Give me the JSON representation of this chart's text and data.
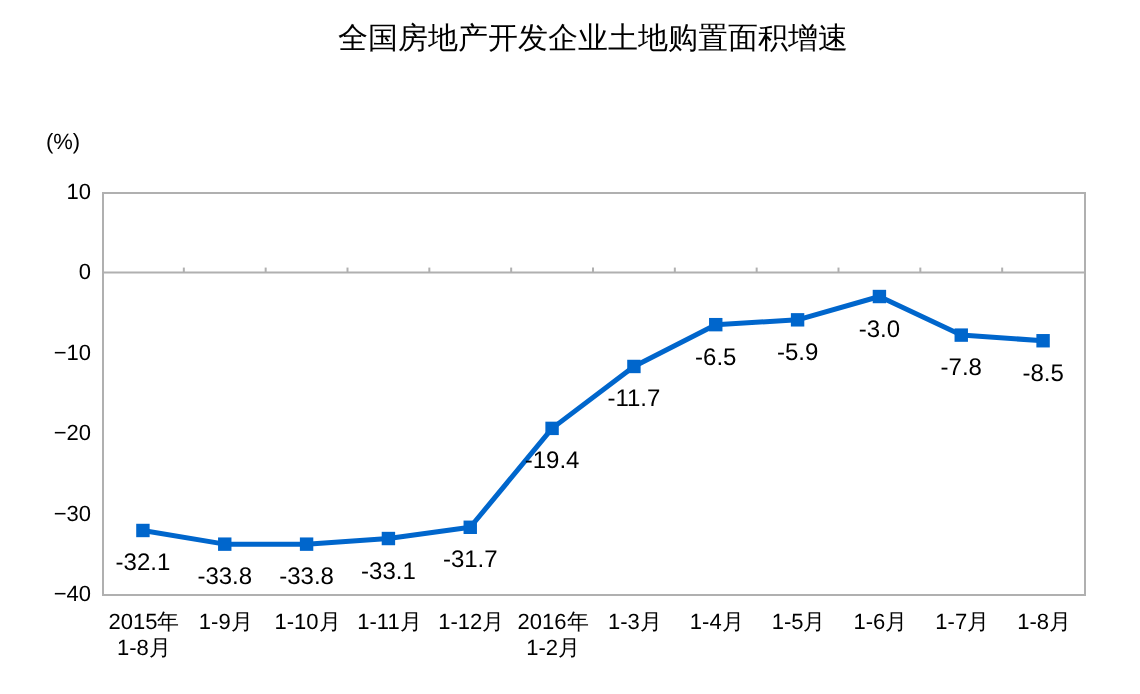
{
  "chart_data": {
    "type": "line",
    "title": "全国房地产开发企业土地购置面积增速",
    "ylabel": "(%)",
    "categories": [
      "2015年\n1-8月",
      "1-9月",
      "1-10月",
      "1-11月",
      "1-12月",
      "2016年\n1-2月",
      "1-3月",
      "1-4月",
      "1-5月",
      "1-6月",
      "1-7月",
      "1-8月"
    ],
    "series": [
      {
        "color": "#0066cc",
        "values": [
          -32.1,
          -33.8,
          -33.8,
          -33.1,
          -31.7,
          -19.4,
          -11.7,
          -6.5,
          -5.9,
          -3.0,
          -7.8,
          -8.5
        ],
        "value_labels": [
          "-32.1",
          "-33.8",
          "-33.8",
          "-33.1",
          "-31.7",
          "-19.4",
          "-11.7",
          "-6.5",
          "-5.9",
          "-3.0",
          "-7.8",
          "-8.5"
        ]
      }
    ],
    "ylim": [
      -40,
      10
    ],
    "yticks": [
      -40,
      -30,
      -20,
      -10,
      0,
      10
    ],
    "ref_lines": [
      {
        "axis": "y",
        "value": 0,
        "color": "#b0b0b0"
      }
    ],
    "marker": "square",
    "line_style": "solid"
  }
}
